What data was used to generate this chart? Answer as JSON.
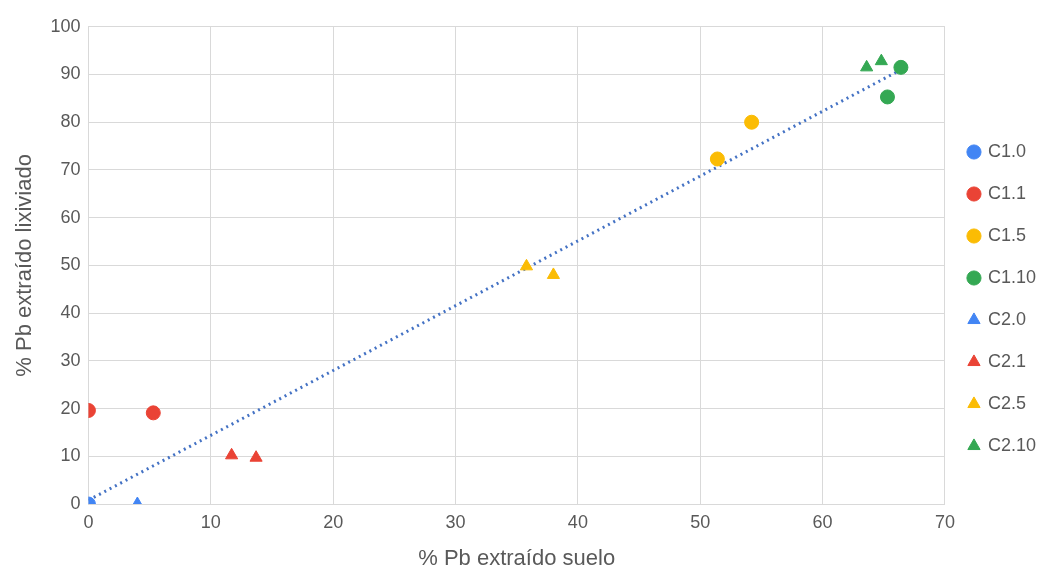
{
  "chart_data": {
    "type": "scatter",
    "xlabel": "% Pb extraído suelo",
    "ylabel": "% Pb extraído lixiviado",
    "xlim": [
      0,
      70
    ],
    "xticks": [
      0,
      10,
      20,
      30,
      40,
      50,
      60,
      70
    ],
    "ylim": [
      0,
      100
    ],
    "yticks": [
      0,
      10,
      20,
      30,
      40,
      50,
      60,
      70,
      80,
      90,
      100
    ],
    "grid": true,
    "legend": "right",
    "series": [
      {
        "name": "C1.0",
        "color": "#4285f4",
        "marker": "circle",
        "x": [
          0
        ],
        "values": [
          0
        ]
      },
      {
        "name": "C1.1",
        "color": "#ea4335",
        "marker": "circle",
        "x": [
          0,
          5.3
        ],
        "values": [
          19.6,
          19.1
        ]
      },
      {
        "name": "C1.5",
        "color": "#fbbc04",
        "marker": "circle",
        "x": [
          51.4,
          54.2
        ],
        "values": [
          72.3,
          80
        ]
      },
      {
        "name": "C1.10",
        "color": "#34a853",
        "marker": "circle",
        "x": [
          66.4,
          65.3
        ],
        "values": [
          91.5,
          85.3
        ]
      },
      {
        "name": "C2.0",
        "color": "#4285f4",
        "marker": "triangle",
        "x": [
          4
        ],
        "values": [
          0
        ]
      },
      {
        "name": "C2.1",
        "color": "#ea4335",
        "marker": "triangle",
        "x": [
          11.7,
          13.7
        ],
        "values": [
          10.2,
          9.7
        ]
      },
      {
        "name": "C2.5",
        "color": "#fbbc04",
        "marker": "triangle",
        "x": [
          35.8,
          38
        ],
        "values": [
          49.8,
          48
        ]
      },
      {
        "name": "C2.10",
        "color": "#34a853",
        "marker": "triangle",
        "x": [
          63.6,
          64.8
        ],
        "values": [
          91.5,
          92.8
        ]
      },
      {
        "type": "line",
        "color": "#4472c4",
        "line_style": "dotted",
        "marker": "none",
        "x": [
          0,
          66.4
        ],
        "values": [
          0.8,
          91
        ]
      }
    ]
  }
}
